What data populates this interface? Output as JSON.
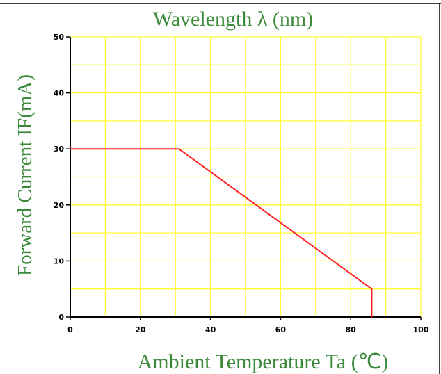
{
  "chart_data": {
    "type": "line",
    "title": "Wavelength λ (nm)",
    "xlabel": "Ambient Temperature Ta (℃)",
    "ylabel": "Forward Current IF(mA)",
    "xlim": [
      0,
      100
    ],
    "ylim": [
      0,
      50
    ],
    "x_ticks": [
      0,
      20,
      40,
      60,
      80,
      100
    ],
    "y_ticks": [
      0,
      10,
      20,
      30,
      40,
      50
    ],
    "x_grid_step": 10,
    "y_grid_step": 5,
    "grid": true,
    "grid_color": "#ffff33",
    "line_color": "#ff2020",
    "series": [
      {
        "x": [
          0,
          31,
          86,
          86
        ],
        "y": [
          30,
          30,
          5,
          0
        ]
      }
    ]
  }
}
